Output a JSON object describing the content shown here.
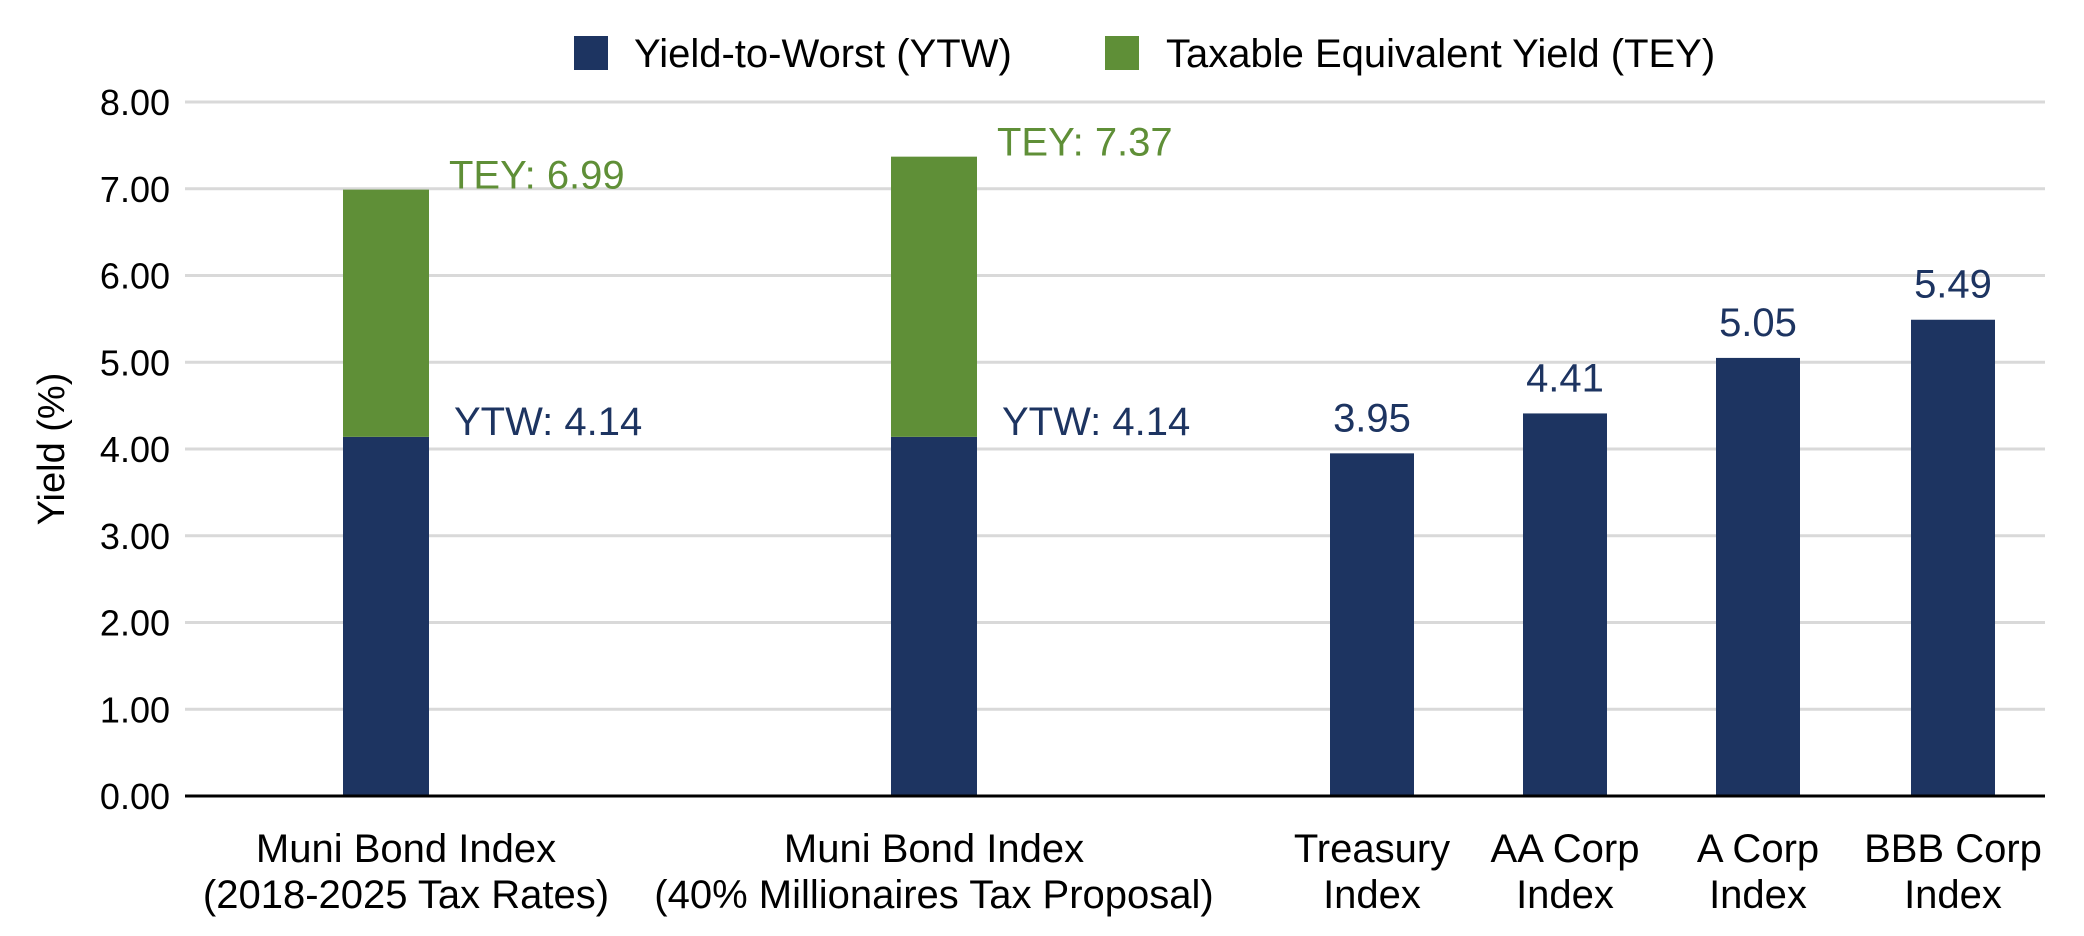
{
  "chart_data": {
    "type": "bar",
    "stacked_categories_note": "",
    "ylabel": "Yield (%)",
    "ylim": [
      0,
      8
    ],
    "yticks": [
      "0.00",
      "1.00",
      "2.00",
      "3.00",
      "4.00",
      "5.00",
      "6.00",
      "7.00",
      "8.00"
    ],
    "grid": true,
    "legend_placement": "top",
    "colors": {
      "ytw": "#1d3461",
      "tey": "#5f8f37",
      "grid": "#d9d9d9",
      "axis": "#000000"
    },
    "series": [
      {
        "name": "Yield-to-Worst (YTW)",
        "key": "ytw"
      },
      {
        "name": "Taxable Equivalent Yield (TEY)",
        "key": "tey"
      }
    ],
    "categories": [
      {
        "label_lines": [
          "Muni Bond Index",
          "(2018-2025 Tax Rates)"
        ],
        "ytw": 4.14,
        "tey_total": 6.99,
        "ytw_label": "YTW: 4.14",
        "tey_label": "TEY: 6.99"
      },
      {
        "label_lines": [
          "Muni Bond Index",
          "(40% Millionaires Tax Proposal)"
        ],
        "ytw": 4.14,
        "tey_total": 7.37,
        "ytw_label": "YTW: 4.14",
        "tey_label": "TEY: 7.37"
      },
      {
        "label_lines": [
          "Treasury",
          "Index"
        ],
        "ytw": 3.95,
        "ytw_label": "3.95"
      },
      {
        "label_lines": [
          "AA Corp",
          "Index"
        ],
        "ytw": 4.41,
        "ytw_label": "4.41"
      },
      {
        "label_lines": [
          "A Corp",
          "Index"
        ],
        "ytw": 5.05,
        "ytw_label": "5.05"
      },
      {
        "label_lines": [
          "BBB Corp",
          "Index"
        ],
        "ytw": 5.49,
        "ytw_label": "5.49"
      }
    ]
  }
}
